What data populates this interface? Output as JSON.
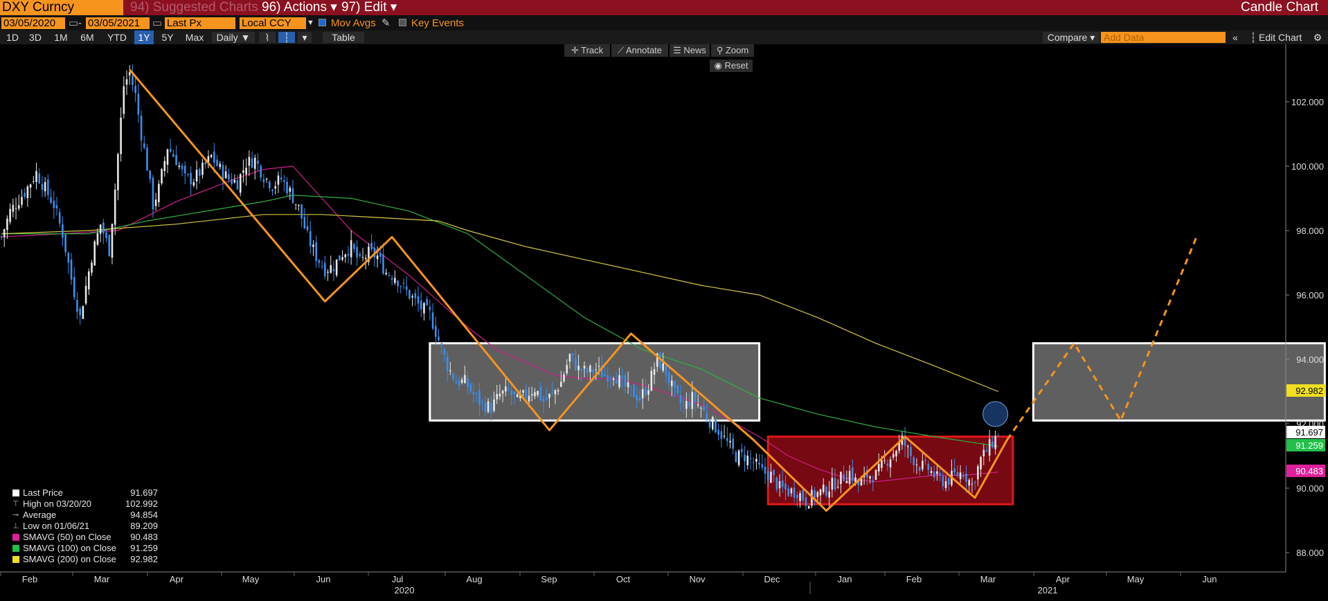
{
  "header": {
    "ticker": "DXY Curncy",
    "suggested_charts": "94) Suggested Charts",
    "actions": "96) Actions ▾",
    "edit": "97) Edit ▾",
    "view_name": "Candle Chart"
  },
  "controls": {
    "start_date": "03/05/2020",
    "end_date": "03/05/2021",
    "price_field": "Last Px",
    "currency": "Local CCY",
    "mov_avgs": "Mov Avgs",
    "key_events": "Key Events"
  },
  "ranges": [
    {
      "label": "1D",
      "selected": false
    },
    {
      "label": "3D",
      "selected": false
    },
    {
      "label": "1M",
      "selected": false
    },
    {
      "label": "6M",
      "selected": false
    },
    {
      "label": "YTD",
      "selected": false
    },
    {
      "label": "1Y",
      "selected": true
    },
    {
      "label": "5Y",
      "selected": false
    },
    {
      "label": "Max",
      "selected": false
    }
  ],
  "frequency": "Daily ▼",
  "table_label": "Table",
  "compare_label": "Compare ▾",
  "add_data_placeholder": "Add Data",
  "edit_chart_label": "Edit Chart",
  "tools": {
    "track": "Track",
    "annotate": "Annotate",
    "news": "News",
    "zoom": "Zoom",
    "reset": "Reset"
  },
  "legend": [
    {
      "label": "Last Price",
      "value": "91.697",
      "color": "#ffffff"
    },
    {
      "label": "High on 03/20/20",
      "value": "102.992",
      "color": ""
    },
    {
      "label": "Average",
      "value": "94.854",
      "color": ""
    },
    {
      "label": "Low on 01/06/21",
      "value": "89.209",
      "color": ""
    },
    {
      "label": "SMAVG (50)  on Close",
      "value": "90.483",
      "color": "#e0209a"
    },
    {
      "label": "SMAVG (100)  on Close",
      "value": "91.259",
      "color": "#22c04a"
    },
    {
      "label": "SMAVG (200)  on Close",
      "value": "92.982",
      "color": "#f0e020"
    }
  ],
  "colors": {
    "orange": "#f7941d",
    "ma50": "#d0208a",
    "ma100": "#30b040",
    "ma200": "#d8c840",
    "up_candle": "#e8e8e8",
    "down_candle": "#3a8ff0",
    "red_box": "#8b0a14",
    "grey_box": "#707070"
  },
  "chart_data": {
    "type": "candlestick",
    "series_name": "DXY Curncy",
    "frequency": "Daily",
    "x_axis": {
      "month_ticks": [
        "Feb",
        "Mar",
        "Apr",
        "May",
        "Jun",
        "Jul",
        "Aug",
        "Sep",
        "Oct",
        "Nov",
        "Dec",
        "Jan",
        "Feb",
        "Mar",
        "Apr",
        "May",
        "Jun"
      ],
      "year_labels": [
        "2020",
        "2021"
      ]
    },
    "y_axis": {
      "ticks": [
        "88.000",
        "90.000",
        "92.000",
        "94.000",
        "96.000",
        "98.000",
        "100.000",
        "102.000"
      ],
      "ylim": [
        87.3,
        103.5
      ]
    },
    "close_path": [
      [
        0,
        97.8
      ],
      [
        3,
        98.6
      ],
      [
        8,
        99.2
      ],
      [
        12,
        99.8
      ],
      [
        15,
        99.3
      ],
      [
        18,
        98.8
      ],
      [
        21,
        97.9
      ],
      [
        24,
        96.5
      ],
      [
        27,
        95.3
      ],
      [
        28,
        95.8
      ],
      [
        31,
        97.2
      ],
      [
        34,
        98.2
      ],
      [
        37,
        97.4
      ],
      [
        39,
        99.3
      ],
      [
        42,
        102.5
      ],
      [
        44,
        102.9
      ],
      [
        46,
        102.2
      ],
      [
        48,
        101.0
      ],
      [
        50,
        100.0
      ],
      [
        52,
        98.8
      ],
      [
        54,
        99.3
      ],
      [
        57,
        100.6
      ],
      [
        60,
        100.2
      ],
      [
        63,
        99.6
      ],
      [
        66,
        99.6
      ],
      [
        69,
        99.9
      ],
      [
        72,
        100.3
      ],
      [
        75,
        99.9
      ],
      [
        78,
        99.6
      ],
      [
        81,
        99.5
      ],
      [
        84,
        100.1
      ],
      [
        87,
        100.2
      ],
      [
        90,
        99.7
      ],
      [
        93,
        99.4
      ],
      [
        96,
        99.6
      ],
      [
        99,
        99.2
      ],
      [
        102,
        98.7
      ],
      [
        105,
        97.8
      ],
      [
        108,
        97.2
      ],
      [
        111,
        96.8
      ],
      [
        114,
        96.9
      ],
      [
        117,
        97.3
      ],
      [
        120,
        97.5
      ],
      [
        123,
        97.0
      ],
      [
        126,
        97.3
      ],
      [
        129,
        97.2
      ],
      [
        132,
        96.7
      ],
      [
        135,
        96.6
      ],
      [
        138,
        96.2
      ],
      [
        141,
        95.9
      ],
      [
        144,
        95.6
      ],
      [
        147,
        95.4
      ],
      [
        150,
        94.6
      ],
      [
        153,
        93.8
      ],
      [
        156,
        93.3
      ],
      [
        159,
        93.3
      ],
      [
        162,
        92.9
      ],
      [
        165,
        92.6
      ],
      [
        168,
        92.5
      ],
      [
        171,
        92.9
      ],
      [
        174,
        93.0
      ],
      [
        177,
        92.7
      ],
      [
        180,
        92.9
      ],
      [
        183,
        93.1
      ],
      [
        186,
        92.7
      ],
      [
        189,
        92.9
      ],
      [
        192,
        93.3
      ],
      [
        195,
        94.1
      ],
      [
        198,
        93.7
      ],
      [
        201,
        93.6
      ],
      [
        204,
        93.7
      ],
      [
        207,
        93.5
      ],
      [
        210,
        93.6
      ],
      [
        213,
        93.2
      ],
      [
        216,
        93.0
      ],
      [
        219,
        92.8
      ],
      [
        222,
        93.2
      ],
      [
        225,
        94.0
      ],
      [
        228,
        93.6
      ],
      [
        231,
        92.9
      ],
      [
        234,
        92.5
      ],
      [
        237,
        92.8
      ],
      [
        240,
        92.5
      ],
      [
        243,
        92.1
      ],
      [
        246,
        91.8
      ],
      [
        249,
        91.4
      ],
      [
        252,
        91.0
      ],
      [
        255,
        91.0
      ],
      [
        258,
        90.8
      ],
      [
        261,
        90.5
      ],
      [
        264,
        90.4
      ],
      [
        267,
        90.0
      ],
      [
        270,
        89.9
      ],
      [
        273,
        89.9
      ],
      [
        276,
        89.6
      ],
      [
        279,
        89.8
      ],
      [
        282,
        89.9
      ],
      [
        285,
        90.1
      ],
      [
        288,
        90.3
      ],
      [
        291,
        90.5
      ],
      [
        294,
        90.1
      ],
      [
        297,
        90.4
      ],
      [
        300,
        90.4
      ],
      [
        303,
        90.8
      ],
      [
        306,
        91.1
      ],
      [
        309,
        91.5
      ],
      [
        312,
        91.0
      ],
      [
        315,
        90.7
      ],
      [
        318,
        90.6
      ],
      [
        321,
        90.3
      ],
      [
        324,
        90.2
      ],
      [
        327,
        90.4
      ],
      [
        330,
        90.5
      ],
      [
        333,
        90.1
      ],
      [
        336,
        90.9
      ],
      [
        339,
        91.3
      ],
      [
        342,
        91.7
      ]
    ],
    "last_price": 91.697,
    "high": {
      "date": "03/20/20",
      "value": 102.992
    },
    "low": {
      "date": "01/06/21",
      "value": 89.209
    },
    "average": 94.854,
    "moving_averages": [
      {
        "name": "SMAVG (50) on Close",
        "last": 90.483,
        "points": [
          [
            0,
            97.8
          ],
          [
            20,
            97.9
          ],
          [
            40,
            98.0
          ],
          [
            60,
            98.9
          ],
          [
            80,
            99.6
          ],
          [
            90,
            99.9
          ],
          [
            100,
            100.0
          ],
          [
            110,
            99.0
          ],
          [
            120,
            98.0
          ],
          [
            130,
            97.3
          ],
          [
            140,
            96.6
          ],
          [
            150,
            95.8
          ],
          [
            160,
            95.0
          ],
          [
            170,
            94.3
          ],
          [
            180,
            93.9
          ],
          [
            190,
            93.5
          ],
          [
            200,
            93.4
          ],
          [
            210,
            93.4
          ],
          [
            220,
            93.2
          ],
          [
            230,
            92.9
          ],
          [
            240,
            92.6
          ],
          [
            250,
            92.1
          ],
          [
            260,
            91.6
          ],
          [
            270,
            91.0
          ],
          [
            280,
            90.6
          ],
          [
            290,
            90.3
          ],
          [
            300,
            90.2
          ],
          [
            310,
            90.3
          ],
          [
            320,
            90.4
          ],
          [
            330,
            90.4
          ],
          [
            342,
            90.5
          ]
        ]
      },
      {
        "name": "SMAVG (100) on Close",
        "last": 91.259,
        "points": [
          [
            0,
            97.9
          ],
          [
            30,
            97.9
          ],
          [
            50,
            98.3
          ],
          [
            70,
            98.6
          ],
          [
            90,
            98.9
          ],
          [
            100,
            99.1
          ],
          [
            120,
            99.0
          ],
          [
            140,
            98.6
          ],
          [
            160,
            97.9
          ],
          [
            180,
            96.6
          ],
          [
            200,
            95.3
          ],
          [
            220,
            94.3
          ],
          [
            240,
            93.7
          ],
          [
            260,
            92.8
          ],
          [
            280,
            92.3
          ],
          [
            300,
            91.9
          ],
          [
            320,
            91.6
          ],
          [
            342,
            91.3
          ]
        ]
      },
      {
        "name": "SMAVG (200) on Close",
        "last": 92.982,
        "points": [
          [
            0,
            97.9
          ],
          [
            30,
            98.0
          ],
          [
            60,
            98.2
          ],
          [
            90,
            98.5
          ],
          [
            110,
            98.5
          ],
          [
            130,
            98.4
          ],
          [
            150,
            98.3
          ],
          [
            160,
            98.0
          ],
          [
            180,
            97.5
          ],
          [
            200,
            97.1
          ],
          [
            220,
            96.7
          ],
          [
            240,
            96.3
          ],
          [
            260,
            96.0
          ],
          [
            280,
            95.3
          ],
          [
            300,
            94.5
          ],
          [
            320,
            93.8
          ],
          [
            342,
            93.0
          ]
        ]
      }
    ],
    "annotations": {
      "orange_zigzag": [
        [
          44,
          103.0
        ],
        [
          111,
          95.8
        ],
        [
          134,
          97.8
        ],
        [
          188,
          91.8
        ],
        [
          216,
          94.8
        ],
        [
          258,
          91.5
        ],
        [
          283,
          89.3
        ],
        [
          310,
          91.6
        ],
        [
          334,
          89.7
        ],
        [
          345,
          91.5
        ]
      ],
      "orange_dashed": [
        [
          345,
          91.5
        ],
        [
          368,
          94.5
        ],
        [
          384,
          92.1
        ],
        [
          410,
          97.8
        ]
      ],
      "white_box_1": {
        "day_range": [
          147,
          260
        ],
        "price_range": [
          92.1,
          94.5
        ]
      },
      "red_box": {
        "day_range": [
          263,
          347
        ],
        "price_range": [
          89.5,
          91.6
        ]
      },
      "white_box_2": {
        "day_range": [
          354,
          454
        ],
        "price_range": [
          92.1,
          94.5
        ]
      }
    }
  }
}
